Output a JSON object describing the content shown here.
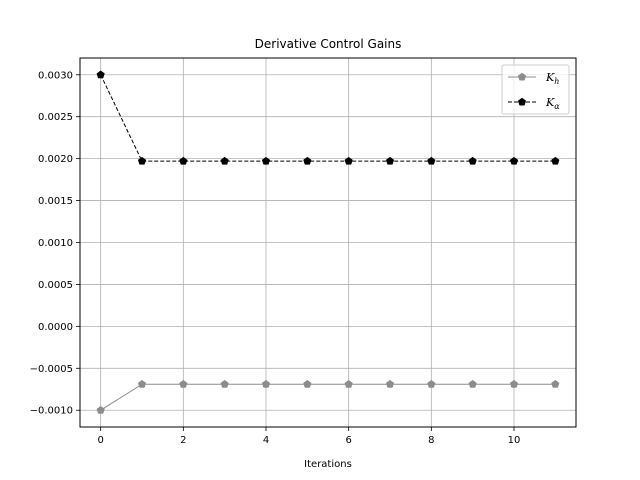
{
  "chart_data": {
    "type": "line",
    "title": "Derivative Control Gains",
    "xlabel": "Iterations",
    "ylabel": "",
    "xlim": [
      -0.5,
      11.5
    ],
    "ylim": [
      -0.0012,
      0.0032
    ],
    "xticks": [
      0,
      2,
      4,
      6,
      8,
      10
    ],
    "xtick_labels": [
      "0",
      "2",
      "4",
      "6",
      "8",
      "10"
    ],
    "yticks": [
      -0.001,
      -0.0005,
      0.0,
      0.0005,
      0.001,
      0.0015,
      0.002,
      0.0025,
      0.003
    ],
    "ytick_labels": [
      "−0.0010",
      "−0.0005",
      "0.0000",
      "0.0005",
      "0.0010",
      "0.0015",
      "0.0020",
      "0.0025",
      "0.0030"
    ],
    "grid": true,
    "legend_position": "top-right",
    "x": [
      0,
      1,
      2,
      3,
      4,
      5,
      6,
      7,
      8,
      9,
      10,
      11
    ],
    "series": [
      {
        "name": "K_h",
        "name_base": "K",
        "name_sub": "h",
        "color": "#8c8c8c",
        "line_style": "solid",
        "marker": "pentagon",
        "values": [
          -0.001,
          -0.00069,
          -0.00069,
          -0.00069,
          -0.00069,
          -0.00069,
          -0.00069,
          -0.00069,
          -0.00069,
          -0.00069,
          -0.00069,
          -0.00069
        ]
      },
      {
        "name": "K_α",
        "name_base": "K",
        "name_sub": "α",
        "color": "#000000",
        "line_style": "dashed",
        "marker": "pentagon",
        "values": [
          0.003,
          0.00197,
          0.00197,
          0.00197,
          0.00197,
          0.00197,
          0.00197,
          0.00197,
          0.00197,
          0.00197,
          0.00197,
          0.00197
        ]
      }
    ]
  }
}
